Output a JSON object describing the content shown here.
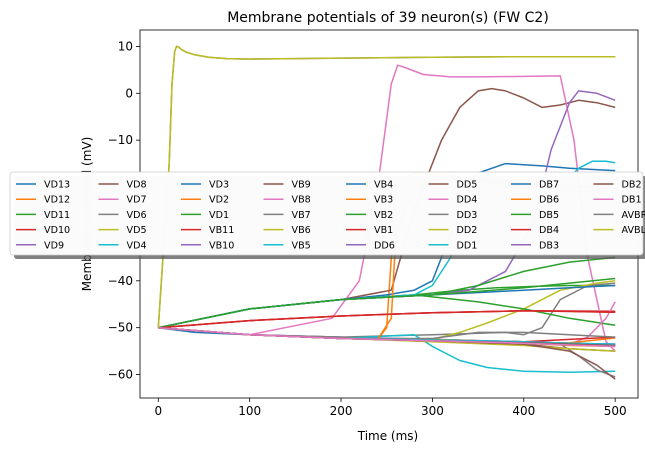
{
  "chart_data": {
    "type": "line",
    "title": "Membrane potentials of 39 neuron(s) (FW C2)",
    "xlabel": "Time (ms)",
    "ylabel": "Membrane potential (mV)",
    "xlim": [
      -20,
      525
    ],
    "ylim": [
      -65,
      13.5
    ],
    "xticks": [
      0,
      100,
      200,
      300,
      400,
      500
    ],
    "yticks": [
      10,
      0,
      -10,
      -20,
      -30,
      -40,
      -50,
      -60
    ],
    "grid": false,
    "legend_placement": "center-left",
    "legend_columns": 8,
    "series": [
      {
        "name": "VD13",
        "color": "#1f77b4",
        "x": [
          0,
          40,
          100,
          200,
          250,
          300,
          350,
          400,
          450,
          500
        ],
        "y": [
          -50,
          -51,
          -51.5,
          -52,
          -52.3,
          -52.5,
          -52.8,
          -53,
          -53.3,
          -53.5
        ]
      },
      {
        "name": "VD12",
        "color": "#ff7f0e",
        "x": [
          0,
          100,
          200,
          240,
          250,
          255,
          260,
          280,
          300,
          340,
          380,
          420,
          460,
          500
        ],
        "y": [
          -50,
          -51.5,
          -52.2,
          -52.5,
          -50,
          -35,
          -20,
          -17,
          -17,
          -18,
          -19,
          -20,
          -21,
          -21
        ]
      },
      {
        "name": "VD11",
        "color": "#2ca02c",
        "x": [
          0,
          100,
          200,
          280,
          330,
          370,
          410,
          450,
          500
        ],
        "y": [
          -50,
          -46,
          -44,
          -43,
          -42,
          -41.5,
          -41.2,
          -41,
          -41
        ]
      },
      {
        "name": "VD10",
        "color": "#d62728",
        "x": [
          0,
          100,
          200,
          300,
          400,
          500
        ],
        "y": [
          -50,
          -48.5,
          -47.5,
          -46.8,
          -46.4,
          -46.5
        ]
      },
      {
        "name": "VD9",
        "color": "#9467bd",
        "x": [
          0,
          100,
          200,
          300,
          400,
          450,
          500
        ],
        "y": [
          -50,
          -51.5,
          -52,
          -52.5,
          -53,
          -53.3,
          -53.6
        ]
      },
      {
        "name": "VD8",
        "color": "#8c564b",
        "x": [
          0,
          100,
          200,
          255,
          280,
          310,
          330,
          350,
          365,
          380,
          400,
          420,
          440,
          460,
          480,
          500
        ],
        "y": [
          -50,
          -46,
          -44,
          -42,
          -25,
          -10,
          -3,
          0.5,
          1,
          0.5,
          -1,
          -3,
          -2.5,
          -1.5,
          -2,
          -3
        ]
      },
      {
        "name": "VD7",
        "color": "#e377c2",
        "x": [
          0,
          100,
          190,
          220,
          240,
          255,
          262,
          270,
          290,
          320,
          350,
          400,
          440,
          455,
          470,
          490,
          500
        ],
        "y": [
          -50,
          -51.5,
          -48,
          -40,
          -20,
          2,
          6,
          5.5,
          4,
          3.5,
          3.5,
          3.6,
          3.7,
          -10,
          -35,
          -53,
          -55
        ]
      },
      {
        "name": "VD6",
        "color": "#7f7f7f",
        "x": [
          0,
          100,
          200,
          300,
          380,
          400,
          420,
          440,
          470,
          500
        ],
        "y": [
          -50,
          -51.5,
          -52,
          -51.5,
          -51,
          -51.5,
          -50,
          -44,
          -41,
          -40.5
        ]
      },
      {
        "name": "VD5",
        "color": "#bcbd22",
        "x": [
          0,
          100,
          200,
          300,
          330,
          360,
          400,
          440,
          480,
          500
        ],
        "y": [
          -50,
          -51.5,
          -52.3,
          -52.5,
          -51,
          -49,
          -46,
          -42,
          -40.5,
          -40
        ]
      },
      {
        "name": "VD4",
        "color": "#17becf",
        "x": [
          0,
          100,
          200,
          280,
          300,
          330,
          360,
          400,
          450,
          500
        ],
        "y": [
          -50,
          -51.5,
          -52.3,
          -51.5,
          -54,
          -57,
          -58.5,
          -59.3,
          -59.5,
          -59.3
        ]
      },
      {
        "name": "VD3",
        "color": "#1f77b4",
        "x": [
          0,
          100,
          200,
          250,
          280,
          300,
          320,
          330,
          350,
          380,
          420,
          450,
          500
        ],
        "y": [
          -50,
          -46,
          -44,
          -43,
          -42,
          -40,
          -30,
          -20,
          -17,
          -15,
          -15.5,
          -16,
          -16.5
        ]
      },
      {
        "name": "VD2",
        "color": "#ff7f0e",
        "x": [
          0,
          100,
          200,
          300,
          350,
          400,
          450,
          500
        ],
        "y": [
          -50,
          -51.5,
          -52.3,
          -52.5,
          -52.8,
          -53.3,
          -53.8,
          -54
        ]
      },
      {
        "name": "VD1",
        "color": "#2ca02c",
        "x": [
          0,
          100,
          200,
          280,
          350,
          400,
          450,
          500
        ],
        "y": [
          -50,
          -46,
          -44,
          -43,
          -44.5,
          -46,
          -48,
          -49.5
        ]
      },
      {
        "name": "VB11",
        "color": "#d62728",
        "x": [
          0,
          100,
          200,
          300,
          400,
          500
        ],
        "y": [
          -50,
          -48.5,
          -47.5,
          -46.8,
          -46.4,
          -46.7
        ]
      },
      {
        "name": "VB10",
        "color": "#9467bd",
        "x": [
          0,
          100,
          200,
          300,
          340,
          380,
          410,
          430,
          450,
          460,
          480,
          500
        ],
        "y": [
          -50,
          -46,
          -44,
          -43,
          -42,
          -38,
          -28,
          -12,
          -2,
          0.5,
          0,
          -1.5
        ]
      },
      {
        "name": "VB9",
        "color": "#8c564b",
        "x": [
          0,
          100,
          200,
          300,
          400,
          450,
          500
        ],
        "y": [
          -50,
          -51.5,
          -52.3,
          -52.8,
          -53.5,
          -54.5,
          -55
        ]
      },
      {
        "name": "VB8",
        "color": "#e377c2",
        "x": [
          0,
          100,
          200,
          300,
          400,
          450,
          470,
          490,
          500
        ],
        "y": [
          -50,
          -51.5,
          -52.3,
          -52.8,
          -53.3,
          -53.5,
          -52,
          -48,
          -44.5
        ]
      },
      {
        "name": "VB7",
        "color": "#7f7f7f",
        "x": [
          0,
          100,
          200,
          300,
          400,
          440,
          460,
          480,
          500
        ],
        "y": [
          -50,
          -51.5,
          -52.3,
          -52.8,
          -53.2,
          -53.5,
          -56,
          -59,
          -60.5
        ]
      },
      {
        "name": "VB6",
        "color": "#bcbd22",
        "x": [
          0,
          100,
          200,
          300,
          400,
          450,
          500
        ],
        "y": [
          -50,
          -51.5,
          -52.3,
          -53,
          -53.8,
          -54.5,
          -55
        ]
      },
      {
        "name": "VB5",
        "color": "#17becf",
        "x": [
          0,
          100,
          200,
          280,
          300,
          320,
          330,
          345,
          360,
          380,
          400,
          420,
          440,
          450,
          460,
          475,
          490,
          500
        ],
        "y": [
          -50,
          -46,
          -44,
          -43,
          -41,
          -35,
          -28,
          -18,
          -19,
          -19.5,
          -20,
          -20.5,
          -20,
          -18,
          -16,
          -14.5,
          -14.5,
          -14.8
        ]
      },
      {
        "name": "VB4",
        "color": "#1f77b4",
        "x": [
          0,
          100,
          200,
          300,
          400,
          500
        ],
        "y": [
          -50,
          -51.5,
          -52.3,
          -52.8,
          -53.3,
          -53.7
        ]
      },
      {
        "name": "VB3",
        "color": "#ff7f0e",
        "x": [
          0,
          100,
          200,
          300,
          400,
          450,
          500
        ],
        "y": [
          -50,
          -51.5,
          -52.3,
          -52.8,
          -53.5,
          -53.2,
          -52.2
        ]
      },
      {
        "name": "VB2",
        "color": "#2ca02c",
        "x": [
          0,
          100,
          200,
          300,
          350,
          400,
          450,
          500
        ],
        "y": [
          -50,
          -46,
          -44,
          -43,
          -41,
          -38,
          -36,
          -35
        ]
      },
      {
        "name": "VB1",
        "color": "#d62728",
        "x": [
          0,
          100,
          200,
          300,
          400,
          450,
          500
        ],
        "y": [
          -50,
          -51.5,
          -52.3,
          -52.8,
          -53,
          -52.5,
          -52
        ]
      },
      {
        "name": "DD6",
        "color": "#9467bd",
        "x": [
          0,
          100,
          200,
          300,
          400,
          450,
          500
        ],
        "y": [
          -50,
          -51.5,
          -52.3,
          -52.8,
          -53.2,
          -53.4,
          -53.5
        ]
      },
      {
        "name": "DD5",
        "color": "#8c564b",
        "x": [
          0,
          100,
          200,
          300,
          400,
          450,
          480,
          500
        ],
        "y": [
          -50,
          -51.5,
          -52.3,
          -52.8,
          -53.5,
          -55,
          -58,
          -61
        ]
      },
      {
        "name": "DD4",
        "color": "#e377c2",
        "x": [
          0,
          100,
          200,
          300,
          400,
          450,
          500
        ],
        "y": [
          -50,
          -51.5,
          -52.3,
          -52.8,
          -53.3,
          -53.5,
          -53.5
        ]
      },
      {
        "name": "DD3",
        "color": "#7f7f7f",
        "x": [
          0,
          100,
          200,
          300,
          350,
          400,
          450,
          500
        ],
        "y": [
          -50,
          -51.5,
          -52.3,
          -52.3,
          -51,
          -51,
          -51.5,
          -52
        ]
      },
      {
        "name": "DD2",
        "color": "#bcbd22",
        "x": [
          0,
          100,
          200,
          300,
          400,
          450,
          500
        ],
        "y": [
          -50,
          -51.5,
          -52.3,
          -52.8,
          -53.3,
          -53.7,
          -54
        ]
      },
      {
        "name": "DD1",
        "color": "#17becf",
        "x": [
          0,
          100,
          200,
          300,
          400,
          450,
          500
        ],
        "y": [
          -50,
          -51.5,
          -52.3,
          -52.6,
          -53,
          -53.3,
          -53.5
        ]
      },
      {
        "name": "DB7",
        "color": "#1f77b4",
        "x": [
          0,
          100,
          200,
          300,
          400,
          450,
          500
        ],
        "y": [
          -50,
          -46,
          -44,
          -43,
          -42,
          -41.5,
          -41
        ]
      },
      {
        "name": "DB6",
        "color": "#ff7f0e",
        "x": [
          0,
          100,
          200,
          240,
          255,
          260,
          280,
          300,
          350,
          400,
          450,
          500
        ],
        "y": [
          -50,
          -51.5,
          -52.3,
          -52.5,
          -48,
          -30,
          -20,
          -18,
          -18.5,
          -19,
          -19.8,
          -20
        ]
      },
      {
        "name": "DB5",
        "color": "#2ca02c",
        "x": [
          0,
          100,
          200,
          300,
          400,
          450,
          500
        ],
        "y": [
          -50,
          -46,
          -44,
          -43,
          -41.5,
          -40.5,
          -39.5
        ]
      },
      {
        "name": "DB4",
        "color": "#d62728",
        "x": [
          0,
          100,
          200,
          300,
          400,
          450,
          500
        ],
        "y": [
          -50,
          -48.5,
          -47.5,
          -46.8,
          -46.4,
          -46.5,
          -46.7
        ]
      },
      {
        "name": "DB3",
        "color": "#9467bd",
        "x": [
          0,
          100,
          200,
          300,
          400,
          450,
          500
        ],
        "y": [
          -50,
          -51.5,
          -52.3,
          -52.8,
          -53.3,
          -53.6,
          -54
        ]
      },
      {
        "name": "DB2",
        "color": "#8c564b",
        "x": [
          0,
          100,
          200,
          300,
          400,
          450,
          500
        ],
        "y": [
          -50,
          -51.5,
          -52.3,
          -52.8,
          -53.2,
          -53.5,
          -53.8
        ]
      },
      {
        "name": "DB1",
        "color": "#e377c2",
        "x": [
          0,
          100,
          200,
          300,
          400,
          450,
          500
        ],
        "y": [
          -50,
          -51.5,
          -52.3,
          -52.8,
          -53.3,
          -53.7,
          -54
        ]
      },
      {
        "name": "AVBR",
        "color": "#7f7f7f",
        "x": [
          0,
          12,
          15,
          18,
          20,
          22,
          25,
          30,
          40,
          55,
          75,
          100,
          150,
          200,
          300,
          400,
          500
        ],
        "y": [
          -50,
          -15,
          2,
          9,
          10,
          9.9,
          9.4,
          8.8,
          8.2,
          7.7,
          7.4,
          7.3,
          7.4,
          7.5,
          7.7,
          7.8,
          7.8
        ]
      },
      {
        "name": "AVBL",
        "color": "#bcbd22",
        "x": [
          0,
          12,
          15,
          18,
          20,
          22,
          25,
          30,
          40,
          55,
          75,
          100,
          150,
          200,
          300,
          400,
          500
        ],
        "y": [
          -50,
          -15,
          2,
          9,
          10,
          9.9,
          9.4,
          8.8,
          8.2,
          7.7,
          7.4,
          7.3,
          7.4,
          7.5,
          7.7,
          7.8,
          7.8
        ]
      }
    ]
  }
}
